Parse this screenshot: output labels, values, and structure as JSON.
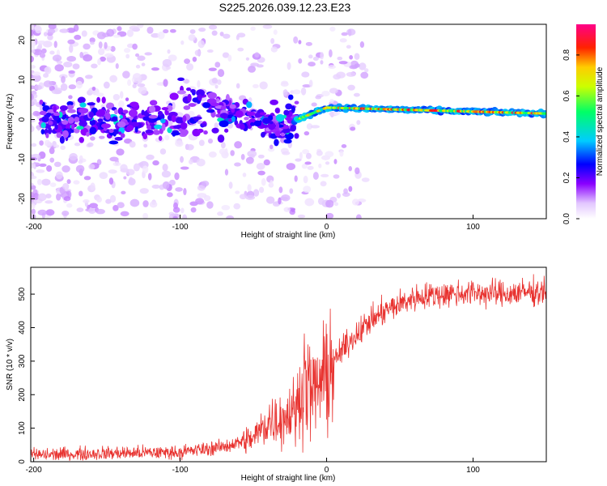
{
  "figure_title": "S225.2026.039.12.23.E23",
  "colors": {
    "frame": "#000000",
    "snr_line": "#e8322f",
    "background": "#ffffff"
  },
  "chart_data": [
    {
      "type": "heatmap",
      "title": "S225.2026.039.12.23.E23",
      "xlabel": "Height of straight line (km)",
      "ylabel": "Frequency (Hz)",
      "xlim": [
        -202,
        150
      ],
      "ylim": [
        -25,
        24
      ],
      "xticks": [
        -200,
        -100,
        0,
        100
      ],
      "yticks": [
        -20,
        -10,
        0,
        10,
        20
      ],
      "ridge": {
        "x": [
          -20,
          0,
          150
        ],
        "y": [
          0,
          3,
          1.5
        ],
        "note": "coherent signal band near 0 Hz for heights above about -20 km"
      },
      "colorbar": {
        "label": "Normalized spectral amplitude",
        "range": [
          0.0,
          0.95
        ],
        "ticks": [
          0.0,
          0.2,
          0.4,
          0.6,
          0.8
        ],
        "colormap": "white-violet-blue-cyan-green-yellow-orange-red-magenta"
      }
    },
    {
      "type": "line",
      "xlabel": "Height of straight line (km)",
      "ylabel": "SNR (10 * v/v)",
      "xlim": [
        -202,
        150
      ],
      "ylim": [
        0,
        580
      ],
      "xticks": [
        -200,
        -100,
        0,
        100
      ],
      "yticks": [
        0,
        100,
        200,
        300,
        400,
        500
      ],
      "series": [
        {
          "name": "SNR",
          "x": [
            -200,
            -150,
            -100,
            -70,
            -50,
            -40,
            -30,
            -20,
            -15,
            -10,
            0,
            10,
            20,
            30,
            40,
            50,
            60,
            70,
            80,
            100,
            120,
            150
          ],
          "y": [
            20,
            25,
            28,
            45,
            70,
            120,
            130,
            160,
            260,
            200,
            260,
            330,
            380,
            420,
            450,
            470,
            490,
            495,
            500,
            505,
            500,
            510
          ]
        }
      ]
    }
  ]
}
